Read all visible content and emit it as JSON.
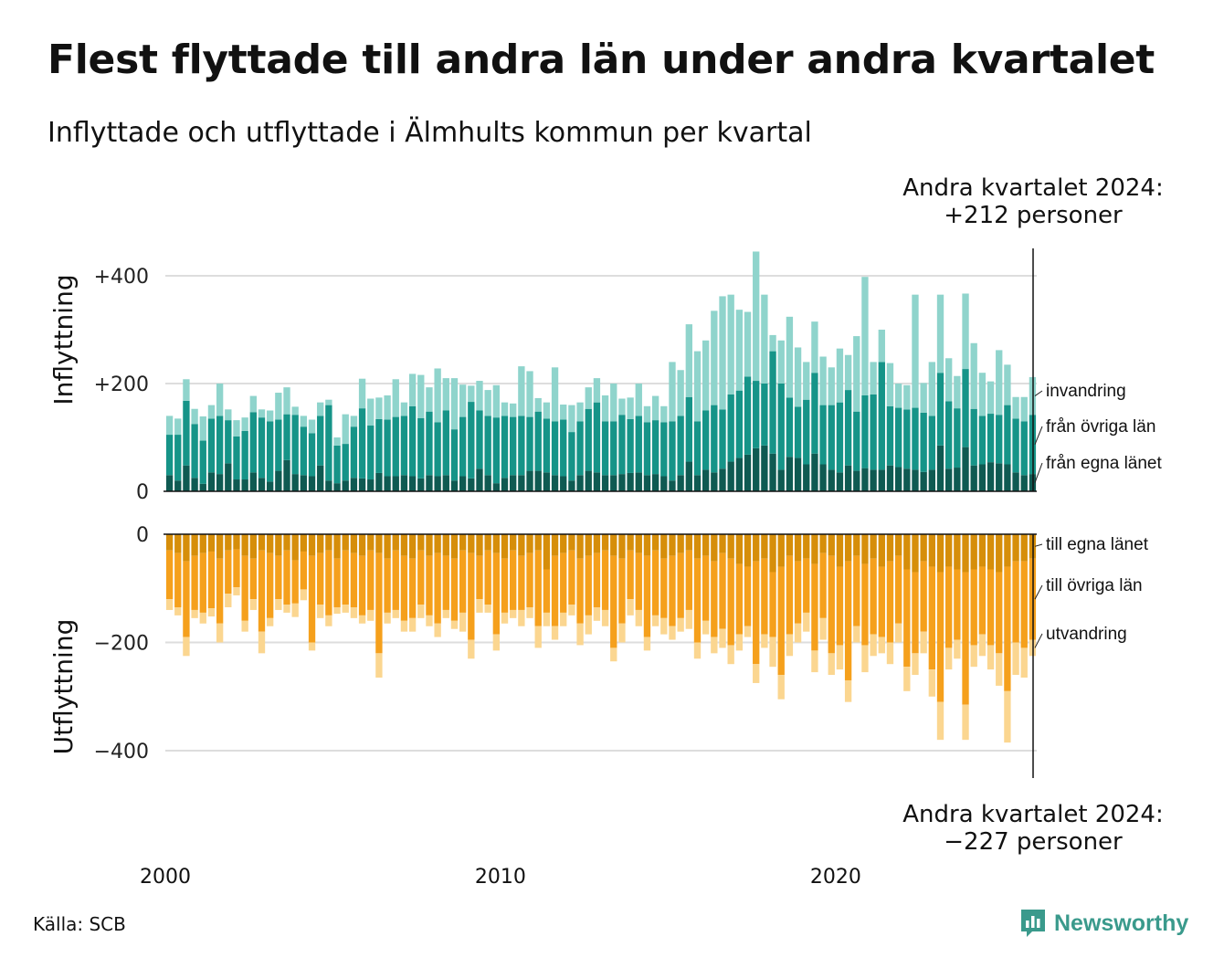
{
  "title": "Flest flyttade till andra län under andra kvartalet",
  "subtitle": "Inflyttade och utflyttade i Älmhults kommun per kvartal",
  "source": "Källa: SCB",
  "brand": {
    "name": "Newsworthy",
    "color": "#3a9a8c"
  },
  "annotations": {
    "in_line1": "Andra kvartalet 2024:",
    "in_line2": "+212 personer",
    "out_line1": "Andra kvartalet 2024:",
    "out_line2": "−227 personer"
  },
  "chart_data": [
    {
      "type": "bar",
      "stacked": true,
      "ylabel": "Inflyttning",
      "ylim": [
        0,
        450
      ],
      "yticks": [
        0,
        200,
        400
      ],
      "ytick_labels": [
        "0",
        "+200",
        "+400"
      ],
      "x_start": "2000 Q1",
      "xticks": [
        2000,
        2010,
        2020
      ],
      "grid": true,
      "series": [
        {
          "name": "från egna länet",
          "color": "#0f5a52",
          "values": [
            30,
            20,
            48,
            25,
            14,
            35,
            32,
            52,
            22,
            22,
            35,
            25,
            18,
            38,
            58,
            32,
            30,
            28,
            48,
            20,
            15,
            20,
            25,
            24,
            22,
            34,
            28,
            28,
            30,
            28,
            24,
            30,
            28,
            30,
            20,
            28,
            24,
            42,
            30,
            15,
            25,
            30,
            30,
            38,
            38,
            35,
            30,
            28,
            20,
            30,
            38,
            35,
            30,
            30,
            32,
            34,
            35,
            30,
            32,
            28,
            20,
            30,
            55,
            30,
            40,
            35,
            42,
            55,
            62,
            68,
            80,
            85,
            70,
            40,
            64,
            62,
            50,
            70,
            50,
            40,
            35,
            48,
            38,
            43,
            40,
            40,
            48,
            45,
            42,
            40,
            36,
            40,
            85,
            42,
            44,
            82,
            48,
            50,
            54,
            52,
            50,
            35,
            30,
            32
          ]
        },
        {
          "name": "från övriga län",
          "color": "#169488",
          "values": [
            75,
            85,
            120,
            100,
            80,
            100,
            108,
            80,
            80,
            90,
            112,
            112,
            112,
            95,
            85,
            110,
            90,
            80,
            92,
            140,
            70,
            68,
            95,
            130,
            100,
            100,
            105,
            110,
            110,
            130,
            112,
            118,
            100,
            120,
            95,
            110,
            142,
            108,
            110,
            122,
            115,
            108,
            110,
            100,
            110,
            100,
            100,
            105,
            90,
            100,
            115,
            130,
            100,
            100,
            110,
            100,
            105,
            98,
            100,
            100,
            110,
            110,
            120,
            100,
            110,
            125,
            110,
            125,
            125,
            145,
            125,
            115,
            190,
            160,
            110,
            95,
            120,
            150,
            110,
            120,
            130,
            140,
            110,
            135,
            140,
            200,
            110,
            110,
            110,
            115,
            110,
            100,
            135,
            125,
            110,
            145,
            105,
            90,
            90,
            90,
            110,
            100,
            100,
            110
          ]
        },
        {
          "name": "invandring",
          "color": "#8fd4cc",
          "values": [
            35,
            30,
            40,
            28,
            45,
            25,
            60,
            20,
            30,
            25,
            30,
            15,
            20,
            50,
            50,
            15,
            20,
            25,
            25,
            10,
            15,
            55,
            20,
            55,
            50,
            40,
            45,
            70,
            25,
            60,
            80,
            45,
            100,
            60,
            95,
            60,
            30,
            55,
            48,
            60,
            25,
            25,
            92,
            85,
            25,
            30,
            100,
            28,
            50,
            35,
            40,
            45,
            48,
            70,
            30,
            40,
            60,
            30,
            45,
            30,
            110,
            85,
            135,
            130,
            130,
            175,
            210,
            185,
            150,
            120,
            240,
            165,
            30,
            80,
            150,
            110,
            70,
            95,
            90,
            70,
            100,
            65,
            140,
            220,
            60,
            60,
            80,
            45,
            45,
            210,
            55,
            100,
            145,
            80,
            60,
            140,
            122,
            80,
            60,
            120,
            75,
            40,
            45,
            70
          ]
        }
      ]
    },
    {
      "type": "bar",
      "stacked": true,
      "ylabel": "Utflyttning",
      "ylim": [
        -450,
        0
      ],
      "yticks": [
        0,
        -200,
        -400
      ],
      "ytick_labels": [
        "0",
        "−200",
        "−400"
      ],
      "x_start": "2000 Q1",
      "xticks": [
        2000,
        2010,
        2020
      ],
      "xtick_labels": [
        "2000",
        "2010",
        "2020"
      ],
      "grid": true,
      "series": [
        {
          "name": "till egna länet",
          "color": "#d68e0a",
          "values": [
            -30,
            -35,
            -50,
            -40,
            -35,
            -32,
            -45,
            -30,
            -28,
            -40,
            -45,
            -30,
            -35,
            -40,
            -30,
            -48,
            -32,
            -40,
            -35,
            -30,
            -45,
            -30,
            -35,
            -40,
            -30,
            -35,
            -45,
            -30,
            -40,
            -45,
            -30,
            -40,
            -35,
            -40,
            -45,
            -30,
            -35,
            -40,
            -30,
            -35,
            -45,
            -30,
            -40,
            -35,
            -30,
            -65,
            -40,
            -35,
            -30,
            -45,
            -40,
            -35,
            -30,
            -40,
            -45,
            -30,
            -35,
            -40,
            -30,
            -45,
            -40,
            -35,
            -30,
            -45,
            -40,
            -50,
            -35,
            -45,
            -55,
            -60,
            -50,
            -45,
            -70,
            -60,
            -40,
            -50,
            -45,
            -55,
            -35,
            -40,
            -60,
            -50,
            -40,
            -55,
            -45,
            -60,
            -50,
            -40,
            -65,
            -70,
            -50,
            -60,
            -70,
            -60,
            -65,
            -70,
            -65,
            -60,
            -65,
            -70,
            -60,
            -50,
            -50,
            -45
          ]
        },
        {
          "name": "till övriga län",
          "color": "#f5a01c",
          "values": [
            -90,
            -100,
            -140,
            -100,
            -110,
            -105,
            -120,
            -80,
            -70,
            -120,
            -75,
            -150,
            -120,
            -80,
            -100,
            -80,
            -70,
            -160,
            -95,
            -120,
            -90,
            -100,
            -100,
            -110,
            -110,
            -185,
            -100,
            -110,
            -120,
            -110,
            -100,
            -110,
            -130,
            -100,
            -115,
            -115,
            -160,
            -80,
            -100,
            -150,
            -100,
            -110,
            -100,
            -100,
            -140,
            -80,
            -130,
            -110,
            -100,
            -120,
            -110,
            -100,
            -110,
            -170,
            -120,
            -90,
            -105,
            -150,
            -120,
            -110,
            -130,
            -120,
            -110,
            -155,
            -120,
            -140,
            -140,
            -160,
            -130,
            -110,
            -190,
            -140,
            -120,
            -200,
            -145,
            -115,
            -100,
            -160,
            -120,
            -180,
            -145,
            -220,
            -130,
            -150,
            -140,
            -130,
            -150,
            -125,
            -180,
            -150,
            -130,
            -190,
            -240,
            -150,
            -130,
            -245,
            -140,
            -125,
            -140,
            -150,
            -230,
            -150,
            -160,
            -150
          ]
        },
        {
          "name": "utvandring",
          "color": "#fbd690",
          "values": [
            -20,
            -15,
            -35,
            -15,
            -20,
            -15,
            -35,
            -25,
            -15,
            -20,
            -20,
            -40,
            -15,
            -20,
            -15,
            -25,
            -20,
            -15,
            -25,
            -20,
            -12,
            -15,
            -20,
            -15,
            -20,
            -45,
            -20,
            -15,
            -20,
            -25,
            -25,
            -20,
            -25,
            -15,
            -15,
            -35,
            -35,
            -25,
            -15,
            -30,
            -20,
            -15,
            -30,
            -20,
            -40,
            -25,
            -25,
            -25,
            -20,
            -40,
            -35,
            -25,
            -30,
            -25,
            -35,
            -30,
            -30,
            -25,
            -20,
            -30,
            -25,
            -25,
            -35,
            -30,
            -25,
            -30,
            -35,
            -35,
            -30,
            -20,
            -35,
            -25,
            -55,
            -45,
            -40,
            -35,
            -35,
            -40,
            -40,
            -40,
            -45,
            -40,
            -30,
            -50,
            -40,
            -30,
            -40,
            -35,
            -45,
            -40,
            -40,
            -50,
            -70,
            -40,
            -35,
            -65,
            -40,
            -40,
            -45,
            -60,
            -95,
            -60,
            -55,
            -30
          ]
        }
      ]
    }
  ]
}
